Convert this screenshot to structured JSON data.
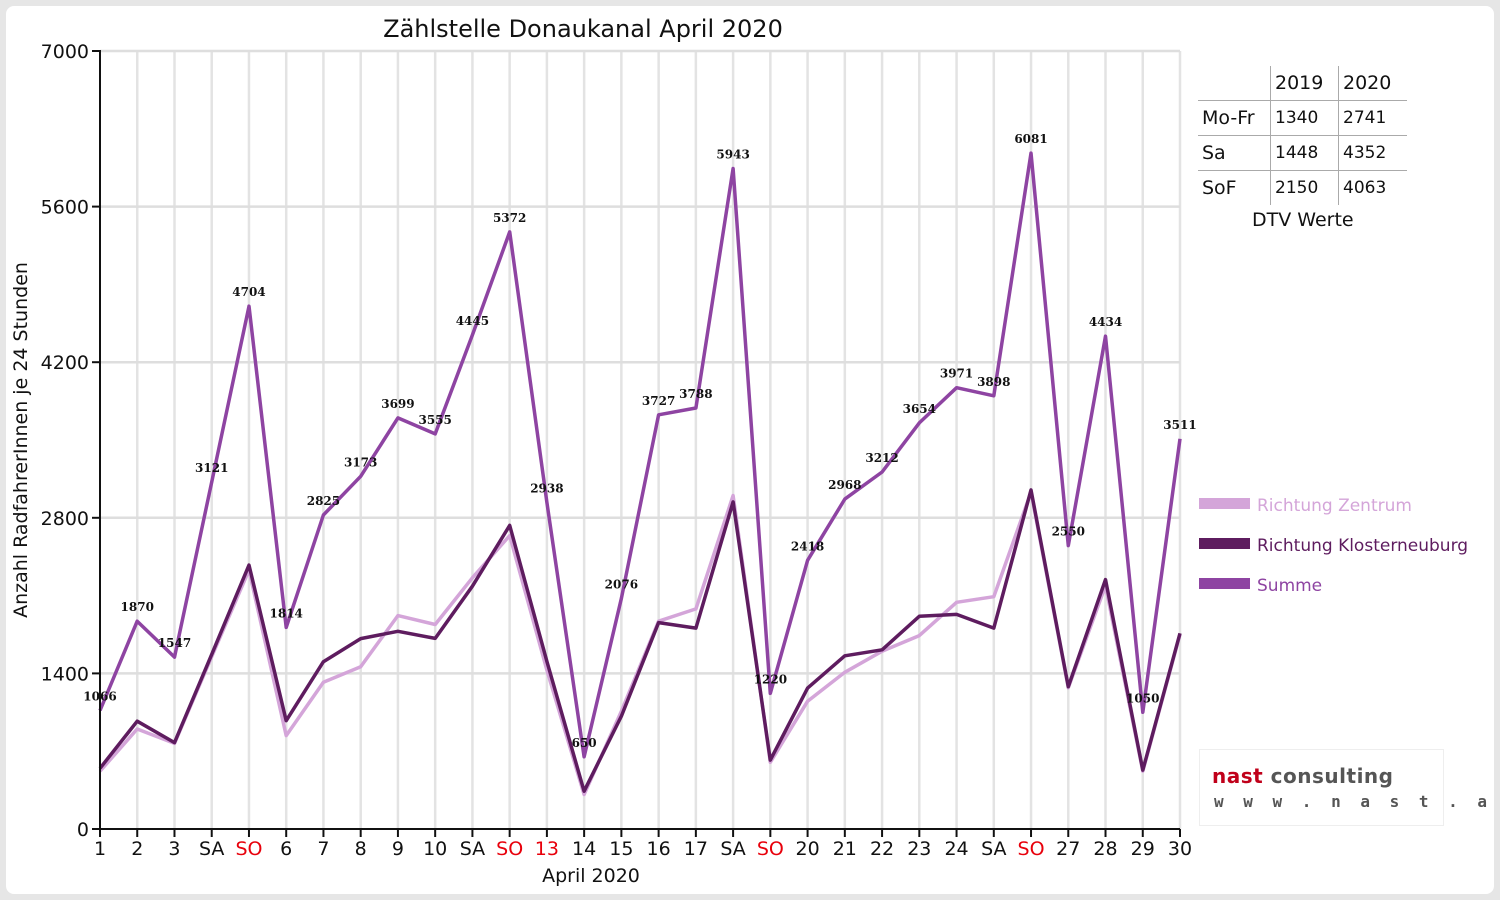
{
  "chart_data": {
    "type": "line",
    "title": "Zählstelle Donaukanal April 2020",
    "xlabel": "April 2020",
    "ylabel": "Anzahl RadfahrerInnen je 24 Stunden",
    "ylim": [
      0,
      7000
    ],
    "yticks": [
      0,
      1400,
      2800,
      4200,
      5600,
      7000
    ],
    "grid": true,
    "legend_position": "right",
    "categories": [
      "1",
      "2",
      "3",
      "SA",
      "SO",
      "6",
      "7",
      "8",
      "9",
      "10",
      "SA",
      "SO",
      "13",
      "14",
      "15",
      "16",
      "17",
      "SA",
      "SO",
      "20",
      "21",
      "22",
      "23",
      "24",
      "SA",
      "SO",
      "27",
      "28",
      "29",
      "30"
    ],
    "red_categories": [
      4,
      11,
      12,
      18,
      25
    ],
    "series": [
      {
        "name": "Richtung Zentrum",
        "color": "#d4a5d9",
        "values": [
          520,
          900,
          770,
          1550,
          2330,
          840,
          1320,
          1460,
          1920,
          1840,
          2260,
          2640,
          1430,
          310,
          1060,
          1870,
          1980,
          3000,
          600,
          1150,
          1410,
          1600,
          1740,
          2040,
          2090,
          3030,
          1270,
          2190,
          520,
          1750
        ]
      },
      {
        "name": "Richtung Klosterneuburg",
        "color": "#5e1c5f",
        "values": [
          546,
          970,
          777,
          1571,
          2374,
          974,
          1505,
          1713,
          1779,
          1715,
          2185,
          2732,
          1508,
          340,
          1016,
          1857,
          1808,
          2943,
          620,
          1268,
          1558,
          1612,
          1914,
          1931,
          1808,
          3051,
          1280,
          2244,
          530,
          1761
        ]
      },
      {
        "name": "Summe",
        "color": "#8e44a2",
        "values": [
          1066,
          1870,
          1547,
          3121,
          4704,
          1814,
          2825,
          3173,
          3699,
          3555,
          4445,
          5372,
          2938,
          650,
          2076,
          3727,
          3788,
          5943,
          1220,
          2418,
          2968,
          3212,
          3654,
          3971,
          3898,
          6081,
          2550,
          4434,
          1050,
          3511
        ]
      }
    ],
    "data_labels": [
      "1066",
      "1870",
      "1547",
      "3121",
      "4704",
      "1814",
      "2825",
      "3173",
      "3699",
      "3555",
      "4445",
      "5372",
      "2938",
      "650",
      "2076",
      "3727",
      "3788",
      "5943",
      "1220",
      "2418",
      "2968",
      "3212",
      "3654",
      "3971",
      "3898",
      "6081",
      "2550",
      "4434",
      "1050",
      "3511"
    ]
  },
  "dtv_table": {
    "header": [
      "",
      "2019",
      "2020"
    ],
    "rows": [
      {
        "label": "Mo-Fr",
        "v2019": "1340",
        "v2020": "2741"
      },
      {
        "label": "Sa",
        "v2019": "1448",
        "v2020": "4352"
      },
      {
        "label": "SoF",
        "v2019": "2150",
        "v2020": "4063"
      }
    ],
    "caption": "DTV Werte"
  },
  "logo": {
    "word1": "nast",
    "word2": "consulting",
    "url": "w w w . n a s t . a t"
  },
  "colors": {
    "weekend_label": "#e8000b",
    "axis_text": "#111111"
  }
}
